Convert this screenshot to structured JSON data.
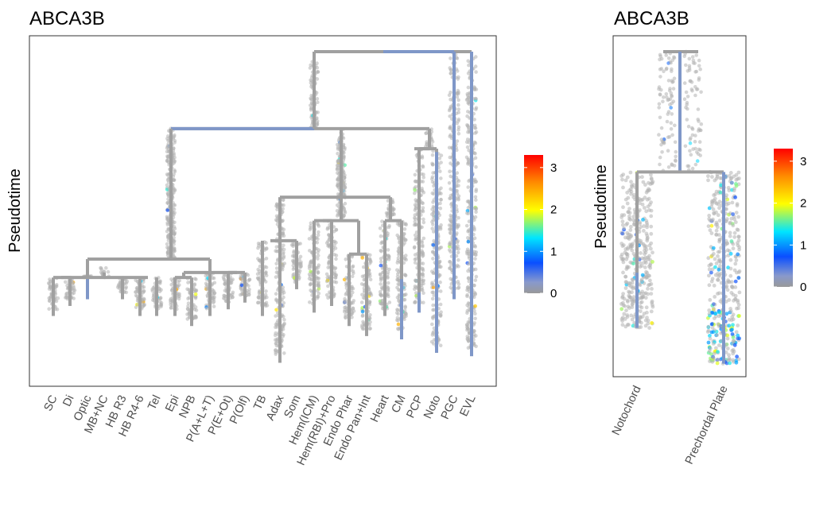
{
  "chart_data": [
    {
      "type": "scatter",
      "subtype": "lineage-tree",
      "title": "ABCA3B",
      "ylabel": "Pseudotime",
      "xlabel": "",
      "categories": [
        "SC",
        "Di",
        "Optic",
        "MB+NC",
        "HB R3",
        "HB R4-6",
        "Tel",
        "Epi",
        "NPB",
        "P(A+L+T)",
        "P(E+Ot)",
        "P(Olf)",
        "TB",
        "Adax",
        "Som",
        "Hem(ICM)",
        "Hem(RBI)+Pro",
        "Endo Phar",
        "Endo Pan+Int",
        "Heart",
        "CM",
        "PCP",
        "Noto",
        "PGC",
        "EVL"
      ],
      "leaf_end_pseudotime": [
        0.79,
        0.76,
        0.69,
        0.66,
        0.74,
        0.79,
        0.79,
        0.79,
        0.82,
        0.79,
        0.77,
        0.75,
        0.79,
        0.93,
        0.71,
        0.78,
        0.76,
        0.82,
        0.85,
        0.79,
        0.85,
        0.77,
        0.9,
        0.74,
        0.91
      ],
      "ylim": [
        1.0,
        0.0
      ],
      "colorbar": {
        "ticks": [
          "0",
          "1",
          "2",
          "3"
        ],
        "range": [
          0,
          3.3
        ]
      },
      "grid": false
    },
    {
      "type": "scatter",
      "subtype": "lineage-tree",
      "title": "ABCA3B",
      "ylabel": "Pseudotime",
      "xlabel": "",
      "categories": [
        "Notochord",
        "Prechordal Plate"
      ],
      "leaf_end_pseudotime": [
        0.85,
        0.96
      ],
      "ylim": [
        1.0,
        0.0
      ],
      "colorbar": {
        "ticks": [
          "0",
          "1",
          "2",
          "3"
        ],
        "range": [
          0,
          3.3
        ]
      },
      "grid": false
    }
  ],
  "colors": {
    "branch": "#a0a0a0",
    "branch_expressed": "#7f97c8",
    "point": "#b3b3b3",
    "panel_border": "#333333",
    "colorscale": [
      "#999999",
      "#0a4fff",
      "#00e5ff",
      "#ffff00",
      "#ff8c00",
      "#ff0000"
    ]
  }
}
